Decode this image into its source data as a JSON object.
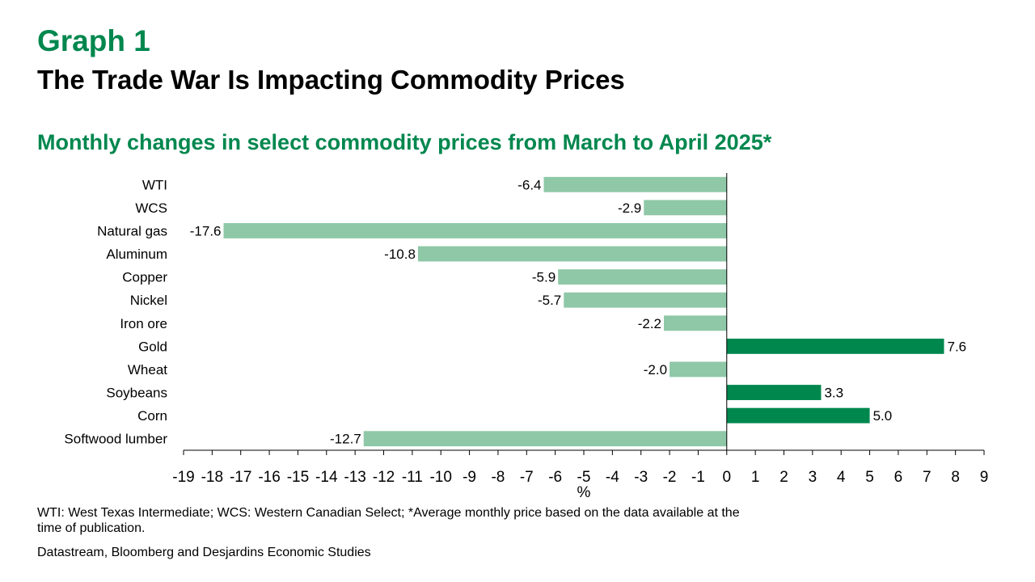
{
  "header": {
    "graph_label": "Graph 1",
    "title": "The Trade War Is Impacting Commodity Prices",
    "subtitle": "Monthly changes in select commodity prices from March to April 2025*"
  },
  "notes": {
    "footnote": "WTI: West Texas Intermediate; WCS: Western Canadian Select; *Average monthly price based on the data available at the time of publication.",
    "source": "Datastream, Bloomberg and Desjardins Economic Studies"
  },
  "colors": {
    "negative": "#8FC8A7",
    "positive": "#00874E",
    "accent": "#00874E"
  },
  "chart_data": {
    "type": "bar",
    "orientation": "horizontal",
    "categories": [
      "WTI",
      "WCS",
      "Natural gas",
      "Aluminum",
      "Copper",
      "Nickel",
      "Iron ore",
      "Gold",
      "Wheat",
      "Soybeans",
      "Corn",
      "Softwood lumber"
    ],
    "values": [
      -6.4,
      -2.9,
      -17.6,
      -10.8,
      -5.9,
      -5.7,
      -2.2,
      7.6,
      -2.0,
      3.3,
      5.0,
      -12.7
    ],
    "data_labels": [
      "-6.4",
      "-2.9",
      "-17.6",
      "-10.8",
      "-5.9",
      "-5.7",
      "-2.2",
      "7.6",
      "-2.0",
      "3.3",
      "5.0",
      "-12.7"
    ],
    "xlabel": "%",
    "ylabel": "",
    "xlim": [
      -19,
      9
    ],
    "xticks": [
      -19,
      -18,
      -17,
      -16,
      -15,
      -14,
      -13,
      -12,
      -11,
      -10,
      -9,
      -8,
      -7,
      -6,
      -5,
      -4,
      -3,
      -2,
      -1,
      0,
      1,
      2,
      3,
      4,
      5,
      6,
      7,
      8,
      9
    ],
    "grid": false,
    "legend": "none"
  }
}
